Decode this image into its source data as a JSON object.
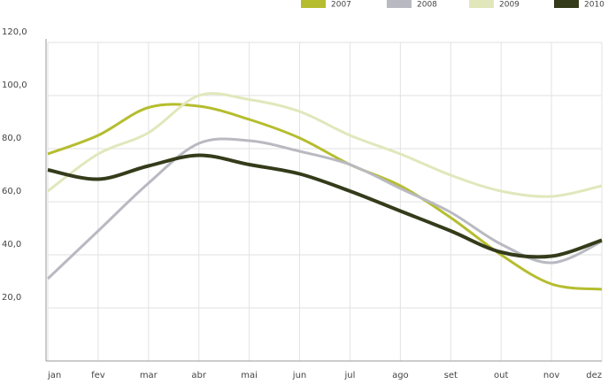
{
  "chart_data": {
    "type": "line",
    "categories": [
      "jan",
      "fev",
      "mar",
      "abr",
      "mai",
      "jun",
      "jul",
      "ago",
      "set",
      "out",
      "nov",
      "dez"
    ],
    "series": [
      {
        "name": "2007",
        "color": "#b5bd2e",
        "values": [
          78,
          85,
          95.5,
          96,
          91,
          84,
          74,
          66,
          54,
          40,
          29,
          27
        ]
      },
      {
        "name": "2008",
        "color": "#b9b9c2",
        "values": [
          31,
          49,
          67,
          82,
          83,
          79,
          74,
          65,
          56,
          44,
          37,
          45
        ]
      },
      {
        "name": "2009",
        "color": "#e1e7bb",
        "values": [
          64,
          78,
          86,
          100,
          98.5,
          94,
          85,
          78,
          70,
          64,
          62,
          66
        ]
      },
      {
        "name": "2010",
        "color": "#343b1a",
        "values": [
          72,
          68.5,
          73.5,
          77.5,
          74,
          70.5,
          64,
          56.5,
          49,
          41,
          39.5,
          45.5
        ]
      }
    ],
    "ylim": [
      0,
      120
    ],
    "yticks": [
      {
        "value": 20,
        "label": "20,0"
      },
      {
        "value": 40,
        "label": "40,0"
      },
      {
        "value": 60,
        "label": "60,0"
      },
      {
        "value": 80,
        "label": "80,0"
      },
      {
        "value": 100,
        "label": "100,0"
      },
      {
        "value": 120,
        "label": "120,0"
      }
    ],
    "grid": true
  }
}
